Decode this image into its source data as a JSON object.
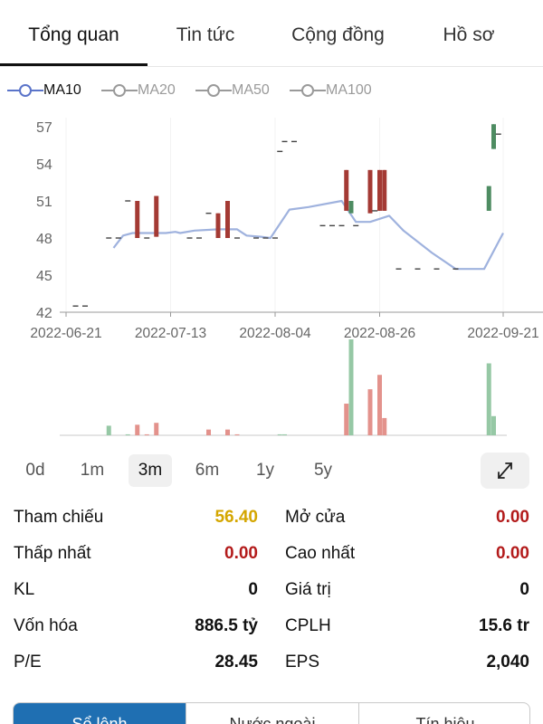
{
  "tabs": [
    {
      "label": "Tổng quan",
      "active": true
    },
    {
      "label": "Tin tức",
      "active": false
    },
    {
      "label": "Cộng đồng",
      "active": false
    },
    {
      "label": "Hồ sơ",
      "active": false
    }
  ],
  "legend": [
    {
      "label": "MA10",
      "active": true,
      "color": "#5b74c9"
    },
    {
      "label": "MA20",
      "active": false,
      "color": "#9a9a9a"
    },
    {
      "label": "MA50",
      "active": false,
      "color": "#9a9a9a"
    },
    {
      "label": "MA100",
      "active": false,
      "color": "#9a9a9a"
    }
  ],
  "chart_data": {
    "type": "candlestick",
    "y_ticks": [
      "57",
      "54",
      "51",
      "48",
      "45",
      "42"
    ],
    "ylim": [
      42,
      58
    ],
    "x_ticks": [
      "2022-06-21",
      "2022-07-13",
      "2022-08-04",
      "2022-08-26",
      "2022-09-21"
    ],
    "colors": {
      "up": "#4e8c62",
      "down": "#a43a34",
      "ma": "#9fb2de",
      "vol_up": "#96c8a5",
      "vol_down": "#e3928c",
      "flat": "#444444"
    },
    "candles": [
      {
        "date": "2022-06-23",
        "o": 42.5,
        "c": 42.5,
        "h": 42.5,
        "l": 42.5
      },
      {
        "date": "2022-06-25",
        "o": 42.5,
        "c": 42.5,
        "h": 42.5,
        "l": 42.5
      },
      {
        "date": "2022-06-30",
        "o": 48.0,
        "c": 48.0,
        "h": 48.0,
        "l": 48.0
      },
      {
        "date": "2022-07-02",
        "o": 48.0,
        "c": 48.0,
        "h": 48.0,
        "l": 48.0
      },
      {
        "date": "2022-07-04",
        "o": 51.0,
        "c": 51.0,
        "h": 51.0,
        "l": 51.0
      },
      {
        "date": "2022-07-06",
        "o": 51.0,
        "c": 48.0,
        "h": 51.0,
        "l": 48.0
      },
      {
        "date": "2022-07-08",
        "o": 48.0,
        "c": 48.0,
        "h": 48.0,
        "l": 48.0
      },
      {
        "date": "2022-07-10",
        "o": 51.4,
        "c": 48.1,
        "h": 51.4,
        "l": 48.1
      },
      {
        "date": "2022-07-17",
        "o": 48.0,
        "c": 48.0,
        "h": 48.0,
        "l": 48.0
      },
      {
        "date": "2022-07-19",
        "o": 48.0,
        "c": 48.0,
        "h": 48.0,
        "l": 48.0
      },
      {
        "date": "2022-07-21",
        "o": 50.0,
        "c": 50.0,
        "h": 50.0,
        "l": 50.0
      },
      {
        "date": "2022-07-23",
        "o": 50.0,
        "c": 48.0,
        "h": 50.0,
        "l": 48.0
      },
      {
        "date": "2022-07-25",
        "o": 51.0,
        "c": 48.0,
        "h": 51.0,
        "l": 48.0
      },
      {
        "date": "2022-07-27",
        "o": 48.0,
        "c": 48.0,
        "h": 48.0,
        "l": 48.0
      },
      {
        "date": "2022-07-31",
        "o": 48.0,
        "c": 48.0,
        "h": 48.0,
        "l": 48.0
      },
      {
        "date": "2022-08-02",
        "o": 48.0,
        "c": 48.0,
        "h": 48.0,
        "l": 48.0
      },
      {
        "date": "2022-08-04",
        "o": 48.0,
        "c": 48.0,
        "h": 48.0,
        "l": 48.0
      },
      {
        "date": "2022-08-05",
        "o": 55.0,
        "c": 55.0,
        "h": 55.0,
        "l": 55.0
      },
      {
        "date": "2022-08-06",
        "o": 55.8,
        "c": 55.8,
        "h": 55.8,
        "l": 55.8
      },
      {
        "date": "2022-08-08",
        "o": 55.8,
        "c": 55.8,
        "h": 55.8,
        "l": 55.8
      },
      {
        "date": "2022-08-14",
        "o": 49.0,
        "c": 49.0,
        "h": 49.0,
        "l": 49.0
      },
      {
        "date": "2022-08-16",
        "o": 49.0,
        "c": 49.0,
        "h": 49.0,
        "l": 49.0
      },
      {
        "date": "2022-08-18",
        "o": 49.0,
        "c": 49.0,
        "h": 49.0,
        "l": 49.0
      },
      {
        "date": "2022-08-19",
        "o": 53.5,
        "c": 50.2,
        "h": 53.5,
        "l": 50.2
      },
      {
        "date": "2022-08-20",
        "o": 50.0,
        "c": 51.0,
        "h": 51.0,
        "l": 50.0
      },
      {
        "date": "2022-08-21",
        "o": 49.0,
        "c": 49.0,
        "h": 49.0,
        "l": 49.0
      },
      {
        "date": "2022-08-24",
        "o": 53.5,
        "c": 50.0,
        "h": 53.5,
        "l": 50.0
      },
      {
        "date": "2022-08-25",
        "o": 50.2,
        "c": 50.2,
        "h": 50.2,
        "l": 50.2
      },
      {
        "date": "2022-08-26",
        "o": 53.5,
        "c": 50.2,
        "h": 53.5,
        "l": 50.2
      },
      {
        "date": "2022-08-27",
        "o": 53.5,
        "c": 50.2,
        "h": 53.5,
        "l": 50.2
      },
      {
        "date": "2022-08-30",
        "o": 45.5,
        "c": 45.5,
        "h": 45.5,
        "l": 45.5
      },
      {
        "date": "2022-09-03",
        "o": 45.5,
        "c": 45.5,
        "h": 45.5,
        "l": 45.5
      },
      {
        "date": "2022-09-07",
        "o": 45.5,
        "c": 45.5,
        "h": 45.5,
        "l": 45.5
      },
      {
        "date": "2022-09-11",
        "o": 45.5,
        "c": 45.5,
        "h": 45.5,
        "l": 45.5
      },
      {
        "date": "2022-09-18",
        "o": 50.2,
        "c": 52.2,
        "h": 52.2,
        "l": 50.2
      },
      {
        "date": "2022-09-19",
        "o": 55.2,
        "c": 57.2,
        "h": 57.2,
        "l": 55.2
      },
      {
        "date": "2022-09-20",
        "o": 56.4,
        "c": 56.4,
        "h": 56.4,
        "l": 56.4
      }
    ],
    "ma10": [
      {
        "date": "2022-07-01",
        "v": 47.2
      },
      {
        "date": "2022-07-03",
        "v": 48.2
      },
      {
        "date": "2022-07-05",
        "v": 48.4
      },
      {
        "date": "2022-07-12",
        "v": 48.4
      },
      {
        "date": "2022-07-14",
        "v": 48.5
      },
      {
        "date": "2022-07-15",
        "v": 48.4
      },
      {
        "date": "2022-07-18",
        "v": 48.6
      },
      {
        "date": "2022-07-23",
        "v": 48.7
      },
      {
        "date": "2022-07-27",
        "v": 48.7
      },
      {
        "date": "2022-07-29",
        "v": 48.2
      },
      {
        "date": "2022-08-01",
        "v": 48.1
      },
      {
        "date": "2022-08-03",
        "v": 48.0
      },
      {
        "date": "2022-08-07",
        "v": 50.3
      },
      {
        "date": "2022-08-11",
        "v": 50.5
      },
      {
        "date": "2022-08-18",
        "v": 51.0
      },
      {
        "date": "2022-08-21",
        "v": 49.3
      },
      {
        "date": "2022-08-24",
        "v": 49.3
      },
      {
        "date": "2022-08-28",
        "v": 49.8
      },
      {
        "date": "2022-08-31",
        "v": 48.6
      },
      {
        "date": "2022-09-06",
        "v": 46.8
      },
      {
        "date": "2022-09-11",
        "v": 45.5
      },
      {
        "date": "2022-09-17",
        "v": 45.5
      },
      {
        "date": "2022-09-21",
        "v": 48.4
      }
    ],
    "volume_ylim": [
      0,
      100
    ],
    "volume": [
      {
        "date": "2022-06-30",
        "v": 10,
        "dir": "up"
      },
      {
        "date": "2022-07-04",
        "v": 1,
        "dir": "up"
      },
      {
        "date": "2022-07-06",
        "v": 11,
        "dir": "down"
      },
      {
        "date": "2022-07-08",
        "v": 1,
        "dir": "down"
      },
      {
        "date": "2022-07-10",
        "v": 13,
        "dir": "down"
      },
      {
        "date": "2022-07-21",
        "v": 6,
        "dir": "down"
      },
      {
        "date": "2022-07-25",
        "v": 6,
        "dir": "down"
      },
      {
        "date": "2022-07-27",
        "v": 1,
        "dir": "down"
      },
      {
        "date": "2022-08-05",
        "v": 1,
        "dir": "up"
      },
      {
        "date": "2022-08-06",
        "v": 1,
        "dir": "up"
      },
      {
        "date": "2022-08-19",
        "v": 33,
        "dir": "down"
      },
      {
        "date": "2022-08-20",
        "v": 100,
        "dir": "up"
      },
      {
        "date": "2022-08-24",
        "v": 48,
        "dir": "down"
      },
      {
        "date": "2022-08-26",
        "v": 63,
        "dir": "down"
      },
      {
        "date": "2022-08-27",
        "v": 18,
        "dir": "down"
      },
      {
        "date": "2022-09-18",
        "v": 75,
        "dir": "up"
      },
      {
        "date": "2022-09-19",
        "v": 20,
        "dir": "up"
      }
    ]
  },
  "ranges": [
    {
      "label": "0d",
      "active": false
    },
    {
      "label": "1m",
      "active": false
    },
    {
      "label": "3m",
      "active": true
    },
    {
      "label": "6m",
      "active": false
    },
    {
      "label": "1y",
      "active": false
    },
    {
      "label": "5y",
      "active": false
    }
  ],
  "stats": {
    "left": [
      {
        "label": "Tham chiếu",
        "value": "56.40",
        "color": "#d4a600"
      },
      {
        "label": "Thấp nhất",
        "value": "0.00",
        "color": "#b31b1b"
      },
      {
        "label": "KL",
        "value": "0",
        "color": "#111111"
      },
      {
        "label": "Vốn hóa",
        "value": "886.5 tỷ",
        "color": "#111111"
      },
      {
        "label": "P/E",
        "value": "28.45",
        "color": "#111111"
      }
    ],
    "right": [
      {
        "label": "Mở cửa",
        "value": "0.00",
        "color": "#b31b1b"
      },
      {
        "label": "Cao nhất",
        "value": "0.00",
        "color": "#b31b1b"
      },
      {
        "label": "Giá trị",
        "value": "0",
        "color": "#111111"
      },
      {
        "label": "CPLH",
        "value": "15.6 tr",
        "color": "#111111"
      },
      {
        "label": "EPS",
        "value": "2,040",
        "color": "#111111"
      }
    ]
  },
  "bottom_tabs": [
    {
      "label": "Sổ lệnh",
      "active": true
    },
    {
      "label": "Nước ngoài",
      "active": false
    },
    {
      "label": "Tín hiệu",
      "active": false
    }
  ]
}
